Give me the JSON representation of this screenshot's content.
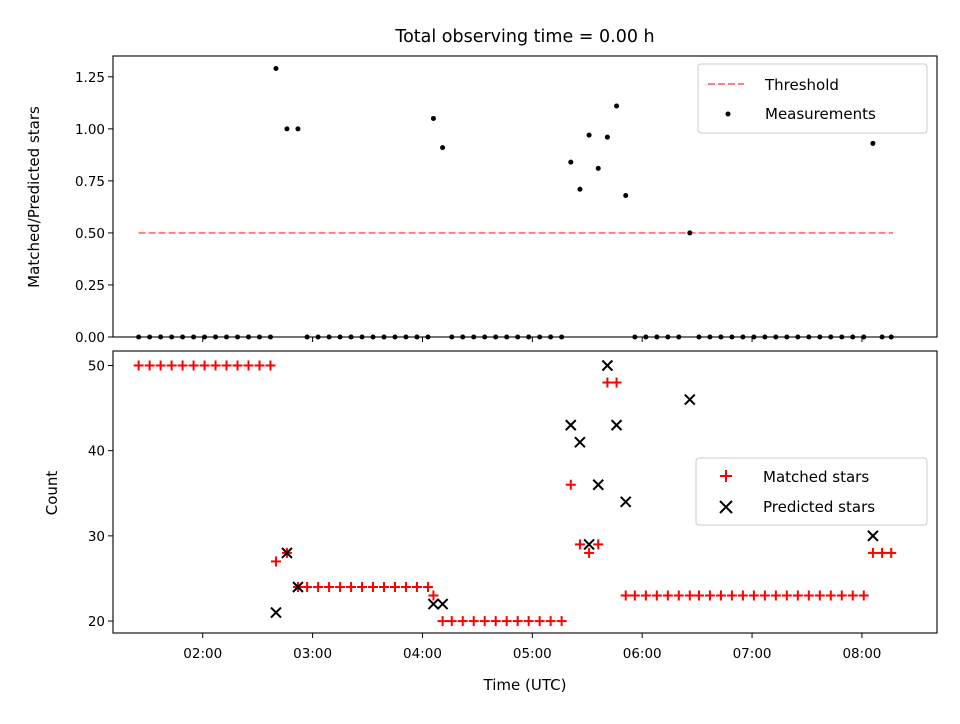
{
  "chart_data": [
    {
      "type": "scatter",
      "title": "Total observing time = 0.00 h",
      "ylabel": "Matched/Predicted stars",
      "ylim": [
        0,
        1.35
      ],
      "yticks": [
        "0.00",
        "0.25",
        "0.50",
        "0.75",
        "1.00",
        "1.25"
      ],
      "xlim": [
        "01:11",
        "08:41"
      ],
      "xticks": [],
      "legend_position": "upper right",
      "grid": false,
      "threshold": {
        "name": "Threshold",
        "style": "dashed",
        "color": "#ff7f7f",
        "value": 0.5,
        "x_range": [
          "01:25",
          "08:17"
        ]
      },
      "series": [
        {
          "name": "Measurements",
          "marker": "dot",
          "color": "#000000",
          "points": [
            [
              "01:25",
              0
            ],
            [
              "01:31",
              0
            ],
            [
              "01:37",
              0
            ],
            [
              "01:43",
              0
            ],
            [
              "01:49",
              0
            ],
            [
              "01:55",
              0
            ],
            [
              "02:01",
              0
            ],
            [
              "02:07",
              0
            ],
            [
              "02:13",
              0
            ],
            [
              "02:19",
              0
            ],
            [
              "02:25",
              0
            ],
            [
              "02:31",
              0
            ],
            [
              "02:37",
              0
            ],
            [
              "02:40",
              1.29
            ],
            [
              "02:46",
              1.0
            ],
            [
              "02:52",
              1.0
            ],
            [
              "02:57",
              0
            ],
            [
              "03:03",
              0
            ],
            [
              "03:09",
              0
            ],
            [
              "03:15",
              0
            ],
            [
              "03:21",
              0
            ],
            [
              "03:27",
              0
            ],
            [
              "03:33",
              0
            ],
            [
              "03:39",
              0
            ],
            [
              "03:45",
              0
            ],
            [
              "03:51",
              0
            ],
            [
              "03:57",
              0
            ],
            [
              "04:03",
              0
            ],
            [
              "04:06",
              1.05
            ],
            [
              "04:11",
              0.91
            ],
            [
              "04:16",
              0
            ],
            [
              "04:22",
              0
            ],
            [
              "04:28",
              0
            ],
            [
              "04:34",
              0
            ],
            [
              "04:40",
              0
            ],
            [
              "04:46",
              0
            ],
            [
              "04:52",
              0
            ],
            [
              "04:58",
              0
            ],
            [
              "05:04",
              0
            ],
            [
              "05:10",
              0
            ],
            [
              "05:16",
              0
            ],
            [
              "05:21",
              0.84
            ],
            [
              "05:26",
              0.71
            ],
            [
              "05:31",
              0.97
            ],
            [
              "05:36",
              0.81
            ],
            [
              "05:41",
              0.96
            ],
            [
              "05:46",
              1.11
            ],
            [
              "05:51",
              0.68
            ],
            [
              "05:56",
              0
            ],
            [
              "06:02",
              0
            ],
            [
              "06:08",
              0
            ],
            [
              "06:14",
              0
            ],
            [
              "06:20",
              0
            ],
            [
              "06:26",
              0.5
            ],
            [
              "06:31",
              0
            ],
            [
              "06:37",
              0
            ],
            [
              "06:43",
              0
            ],
            [
              "06:49",
              0
            ],
            [
              "06:55",
              0
            ],
            [
              "07:01",
              0
            ],
            [
              "07:07",
              0
            ],
            [
              "07:13",
              0
            ],
            [
              "07:19",
              0
            ],
            [
              "07:25",
              0
            ],
            [
              "07:31",
              0
            ],
            [
              "07:37",
              0
            ],
            [
              "07:43",
              0
            ],
            [
              "07:49",
              0
            ],
            [
              "07:55",
              0
            ],
            [
              "08:01",
              0
            ],
            [
              "08:06",
              0.93
            ],
            [
              "08:11",
              0
            ],
            [
              "08:16",
              0
            ]
          ]
        }
      ]
    },
    {
      "type": "scatter",
      "xlabel": "Time (UTC)",
      "ylabel": "Count",
      "ylim": [
        18.6,
        51.7
      ],
      "yticks": [
        "20",
        "30",
        "40",
        "50"
      ],
      "xlim": [
        "01:11",
        "08:41"
      ],
      "xticks": [
        "02:00",
        "03:00",
        "04:00",
        "05:00",
        "06:00",
        "07:00",
        "08:00"
      ],
      "legend_position": "center right",
      "grid": false,
      "series": [
        {
          "name": "Matched stars",
          "marker": "plus",
          "color": "#ff0000",
          "points": [
            [
              "01:25",
              50
            ],
            [
              "01:31",
              50
            ],
            [
              "01:37",
              50
            ],
            [
              "01:43",
              50
            ],
            [
              "01:49",
              50
            ],
            [
              "01:55",
              50
            ],
            [
              "02:01",
              50
            ],
            [
              "02:07",
              50
            ],
            [
              "02:13",
              50
            ],
            [
              "02:19",
              50
            ],
            [
              "02:25",
              50
            ],
            [
              "02:31",
              50
            ],
            [
              "02:37",
              50
            ],
            [
              "02:40",
              27
            ],
            [
              "02:46",
              28
            ],
            [
              "02:52",
              24
            ],
            [
              "02:57",
              24
            ],
            [
              "03:03",
              24
            ],
            [
              "03:09",
              24
            ],
            [
              "03:15",
              24
            ],
            [
              "03:21",
              24
            ],
            [
              "03:27",
              24
            ],
            [
              "03:33",
              24
            ],
            [
              "03:39",
              24
            ],
            [
              "03:45",
              24
            ],
            [
              "03:51",
              24
            ],
            [
              "03:57",
              24
            ],
            [
              "04:03",
              24
            ],
            [
              "04:06",
              23
            ],
            [
              "04:11",
              20
            ],
            [
              "04:16",
              20
            ],
            [
              "04:22",
              20
            ],
            [
              "04:28",
              20
            ],
            [
              "04:34",
              20
            ],
            [
              "04:40",
              20
            ],
            [
              "04:46",
              20
            ],
            [
              "04:52",
              20
            ],
            [
              "04:58",
              20
            ],
            [
              "05:04",
              20
            ],
            [
              "05:10",
              20
            ],
            [
              "05:16",
              20
            ],
            [
              "05:21",
              36
            ],
            [
              "05:26",
              29
            ],
            [
              "05:31",
              28
            ],
            [
              "05:36",
              29
            ],
            [
              "05:41",
              48
            ],
            [
              "05:46",
              48
            ],
            [
              "05:51",
              23
            ],
            [
              "05:56",
              23
            ],
            [
              "06:02",
              23
            ],
            [
              "06:08",
              23
            ],
            [
              "06:14",
              23
            ],
            [
              "06:20",
              23
            ],
            [
              "06:26",
              23
            ],
            [
              "06:31",
              23
            ],
            [
              "06:37",
              23
            ],
            [
              "06:43",
              23
            ],
            [
              "06:49",
              23
            ],
            [
              "06:55",
              23
            ],
            [
              "07:01",
              23
            ],
            [
              "07:07",
              23
            ],
            [
              "07:13",
              23
            ],
            [
              "07:19",
              23
            ],
            [
              "07:25",
              23
            ],
            [
              "07:31",
              23
            ],
            [
              "07:37",
              23
            ],
            [
              "07:43",
              23
            ],
            [
              "07:49",
              23
            ],
            [
              "07:55",
              23
            ],
            [
              "08:01",
              23
            ],
            [
              "08:06",
              28
            ],
            [
              "08:11",
              28
            ],
            [
              "08:16",
              28
            ]
          ]
        },
        {
          "name": "Predicted stars",
          "marker": "x",
          "color": "#000000",
          "points": [
            [
              "02:40",
              21
            ],
            [
              "02:46",
              28
            ],
            [
              "02:52",
              24
            ],
            [
              "04:06",
              22
            ],
            [
              "04:11",
              22
            ],
            [
              "05:21",
              43
            ],
            [
              "05:26",
              41
            ],
            [
              "05:31",
              29
            ],
            [
              "05:36",
              36
            ],
            [
              "05:41",
              50
            ],
            [
              "05:46",
              43
            ],
            [
              "05:51",
              34
            ],
            [
              "06:26",
              46
            ],
            [
              "08:06",
              30
            ]
          ]
        }
      ]
    }
  ]
}
